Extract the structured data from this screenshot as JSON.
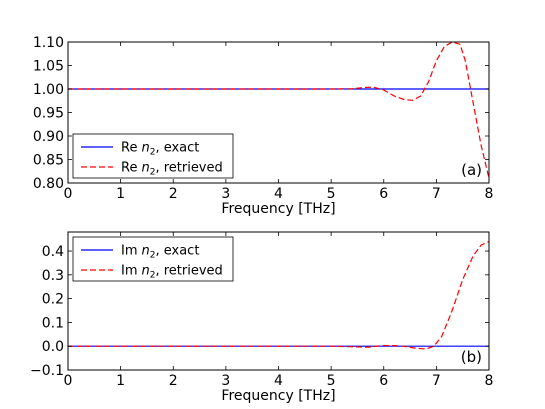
{
  "chart_data": [
    {
      "type": "line",
      "panel_label": "(a)",
      "xlabel": "Frequency [THz]",
      "ylabel": "",
      "xlim": [
        0,
        8
      ],
      "ylim": [
        0.8,
        1.1
      ],
      "xticks": [
        "0",
        "1",
        "2",
        "3",
        "4",
        "5",
        "6",
        "7",
        "8"
      ],
      "yticks": [
        "0.80",
        "0.85",
        "0.90",
        "0.95",
        "1.00",
        "1.05",
        "1.10"
      ],
      "ytick_values": [
        0.8,
        0.85,
        0.9,
        0.95,
        1.0,
        1.05,
        1.1
      ],
      "legend_position": "lower-left",
      "grid": false,
      "series": [
        {
          "name": "Re n₂, exact",
          "legend_prefix": "Re",
          "legend_suffix": ", exact",
          "color": "#0000ff",
          "style": "solid",
          "x": [
            0,
            8
          ],
          "y": [
            1.0,
            1.0
          ]
        },
        {
          "name": "Re n₂, retrieved",
          "legend_prefix": "Re",
          "legend_suffix": ", retrieved",
          "color": "#ff0000",
          "style": "dashed",
          "x": [
            0,
            5.0,
            5.4,
            5.6,
            5.8,
            6.0,
            6.2,
            6.4,
            6.55,
            6.7,
            6.85,
            7.0,
            7.15,
            7.3,
            7.45,
            7.55,
            7.65,
            7.75,
            7.85,
            8.0
          ],
          "y": [
            1.0,
            1.0,
            1.0005,
            1.003,
            1.004,
            0.998,
            0.985,
            0.977,
            0.976,
            0.985,
            1.015,
            1.06,
            1.09,
            1.1,
            1.095,
            1.06,
            1.0,
            0.94,
            0.88,
            0.81
          ]
        }
      ]
    },
    {
      "type": "line",
      "panel_label": "(b)",
      "xlabel": "Frequency [THz]",
      "ylabel": "",
      "xlim": [
        0,
        8
      ],
      "ylim": [
        -0.1,
        0.48
      ],
      "xticks": [
        "0",
        "1",
        "2",
        "3",
        "4",
        "5",
        "6",
        "7",
        "8"
      ],
      "yticks": [
        "−0.1",
        "0.0",
        "0.1",
        "0.2",
        "0.3",
        "0.4"
      ],
      "ytick_values": [
        -0.1,
        0.0,
        0.1,
        0.2,
        0.3,
        0.4
      ],
      "legend_position": "upper-left",
      "grid": false,
      "series": [
        {
          "name": "Im n₂, exact",
          "legend_prefix": "Im",
          "legend_suffix": ", exact",
          "color": "#0000ff",
          "style": "solid",
          "x": [
            0,
            8
          ],
          "y": [
            0.0,
            0.0
          ]
        },
        {
          "name": "Im n₂, retrieved",
          "legend_prefix": "Im",
          "legend_suffix": ", retrieved",
          "color": "#ff0000",
          "style": "dashed",
          "x": [
            0,
            5.0,
            5.5,
            5.7,
            6.0,
            6.3,
            6.6,
            6.8,
            6.95,
            7.1,
            7.3,
            7.5,
            7.7,
            7.85,
            8.0
          ],
          "y": [
            0.0,
            0.0,
            -0.003,
            -0.004,
            0.003,
            0.002,
            -0.008,
            -0.012,
            0.0,
            0.04,
            0.15,
            0.28,
            0.38,
            0.425,
            0.44
          ]
        }
      ]
    }
  ]
}
